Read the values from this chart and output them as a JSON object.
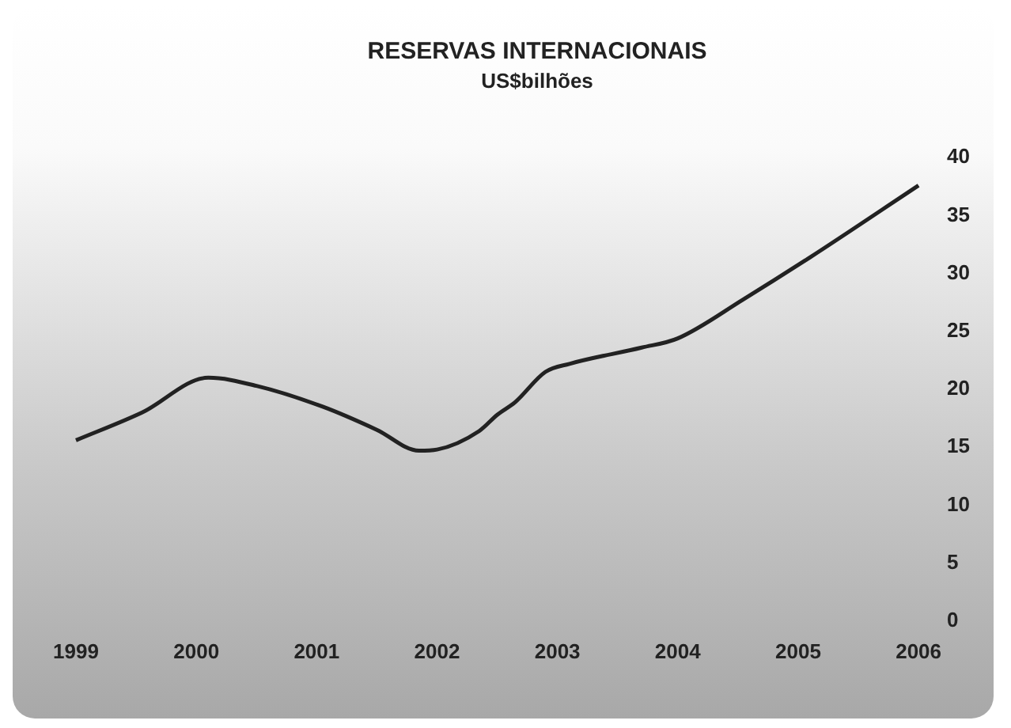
{
  "chart_data": {
    "type": "line",
    "title": "RESERVAS INTERNACIONAIS",
    "subtitle": "US$bilhões",
    "series": [
      {
        "color": "#222222",
        "x": [
          1999.0,
          1999.55,
          2000.1,
          2000.5,
          2001.05,
          2001.5,
          2001.85,
          2002.0,
          2002.35,
          2002.5,
          2002.65,
          2002.9,
          2003.1,
          2003.7,
          2004.0,
          2004.55,
          2005.1,
          2006.0
        ],
        "values": [
          15.6,
          18.0,
          21.0,
          20.3,
          18.5,
          16.5,
          14.7,
          14.8,
          16.4,
          17.8,
          18.9,
          21.5,
          22.2,
          23.6,
          24.4,
          27.8,
          31.4,
          37.6
        ]
      }
    ],
    "xlim": [
      1999,
      2006
    ],
    "xticks": [
      1999,
      2000,
      2001,
      2002,
      2003,
      2004,
      2005,
      2006
    ],
    "ylim": [
      0,
      40
    ],
    "yticks": [
      0,
      5,
      10,
      15,
      20,
      25,
      30,
      35,
      40
    ],
    "grid": false,
    "legend": false,
    "marker": "none",
    "line_style": "solid"
  }
}
